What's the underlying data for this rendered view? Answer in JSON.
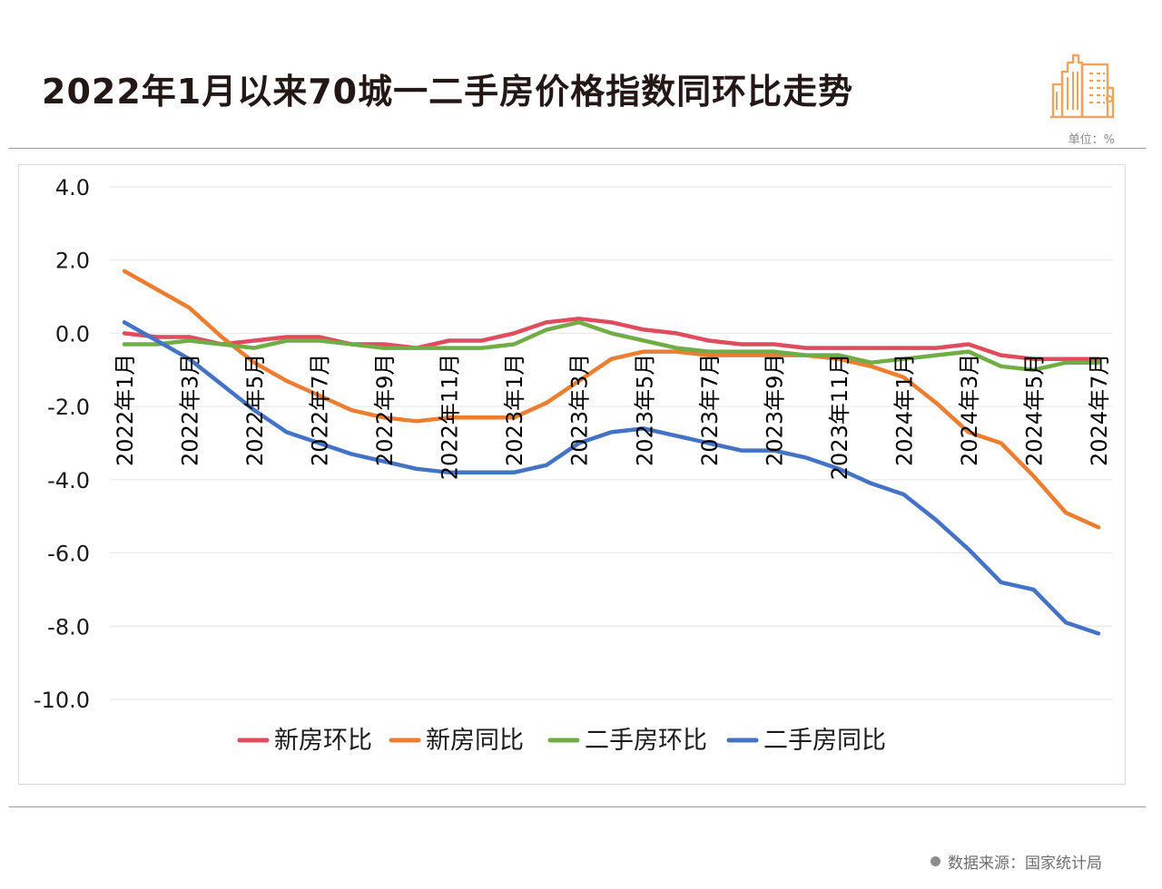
{
  "header": {
    "title": "2022年1月以来70城一二手房价格指数同环比走势",
    "unit": "单位：%"
  },
  "footer": {
    "source": "数据来源：国家统计局"
  },
  "icons": {
    "logo": "buildings-icon",
    "source_bullet": "bullet-dot-icon"
  },
  "colors": {
    "new_mom": "#E04B5E",
    "new_yoy": "#ED7D31",
    "used_mom": "#70AD47",
    "used_yoy": "#4472C4",
    "logo": "#F0A35E"
  },
  "chart_data": {
    "type": "line",
    "title": "2022年1月以来70城一二手房价格指数同环比走势",
    "unit": "%",
    "ylim": [
      -10,
      4
    ],
    "yticks": [
      "4.0",
      "2.0",
      "0.0",
      "-2.0",
      "-4.0",
      "-6.0",
      "-8.0",
      "-10.0"
    ],
    "ytick_values": [
      4,
      2,
      0,
      -2,
      -4,
      -6,
      -8,
      -10
    ],
    "grid": true,
    "legend_position": "bottom",
    "x": [
      "2022年1月",
      "2022年2月",
      "2022年3月",
      "2022年4月",
      "2022年5月",
      "2022年6月",
      "2022年7月",
      "2022年8月",
      "2022年9月",
      "2022年10月",
      "2022年11月",
      "2022年12月",
      "2023年1月",
      "2023年2月",
      "2023年3月",
      "2023年4月",
      "2023年5月",
      "2023年6月",
      "2023年7月",
      "2023年8月",
      "2023年9月",
      "2023年10月",
      "2023年11月",
      "2023年12月",
      "2024年1月",
      "2024年2月",
      "2024年3月",
      "2024年4月",
      "2024年5月",
      "2024年6月",
      "2024年7月"
    ],
    "xtick_labels": [
      "2022年1月",
      "2022年3月",
      "2022年5月",
      "2022年7月",
      "2022年9月",
      "2022年11月",
      "2023年1月",
      "2023年3月",
      "2023年5月",
      "2023年7月",
      "2023年9月",
      "2023年11月",
      "2024年1月",
      "2024年3月",
      "2024年5月",
      "2024年7月"
    ],
    "series": [
      {
        "name": "新房环比",
        "color": "#E04B5E",
        "values": [
          0.0,
          -0.1,
          -0.1,
          -0.3,
          -0.2,
          -0.1,
          -0.1,
          -0.3,
          -0.3,
          -0.4,
          -0.2,
          -0.2,
          0.0,
          0.3,
          0.4,
          0.3,
          0.1,
          0.0,
          -0.2,
          -0.3,
          -0.3,
          -0.4,
          -0.4,
          -0.4,
          -0.4,
          -0.4,
          -0.3,
          -0.6,
          -0.7,
          -0.7,
          -0.7
        ]
      },
      {
        "name": "新房同比",
        "color": "#ED7D31",
        "values": [
          1.7,
          1.2,
          0.7,
          -0.1,
          -0.8,
          -1.3,
          -1.7,
          -2.1,
          -2.3,
          -2.4,
          -2.3,
          -2.3,
          -2.3,
          -1.9,
          -1.3,
          -0.7,
          -0.5,
          -0.5,
          -0.6,
          -0.6,
          -0.6,
          -0.6,
          -0.7,
          -0.9,
          -1.2,
          -1.9,
          -2.7,
          -3.0,
          -3.9,
          -4.9,
          -5.3
        ]
      },
      {
        "name": "二手房环比",
        "color": "#70AD47",
        "values": [
          -0.3,
          -0.3,
          -0.2,
          -0.3,
          -0.4,
          -0.2,
          -0.2,
          -0.3,
          -0.4,
          -0.4,
          -0.4,
          -0.4,
          -0.3,
          0.1,
          0.3,
          0.0,
          -0.2,
          -0.4,
          -0.5,
          -0.5,
          -0.5,
          -0.6,
          -0.6,
          -0.8,
          -0.7,
          -0.6,
          -0.5,
          -0.9,
          -1.0,
          -0.8,
          -0.8
        ]
      },
      {
        "name": "二手房同比",
        "color": "#4472C4",
        "values": [
          0.3,
          -0.2,
          -0.7,
          -1.4,
          -2.1,
          -2.7,
          -3.0,
          -3.3,
          -3.5,
          -3.7,
          -3.8,
          -3.8,
          -3.8,
          -3.6,
          -3.0,
          -2.7,
          -2.6,
          -2.8,
          -3.0,
          -3.2,
          -3.2,
          -3.4,
          -3.7,
          -4.1,
          -4.4,
          -5.1,
          -5.9,
          -6.8,
          -7.0,
          -7.9,
          -8.2
        ]
      }
    ]
  }
}
